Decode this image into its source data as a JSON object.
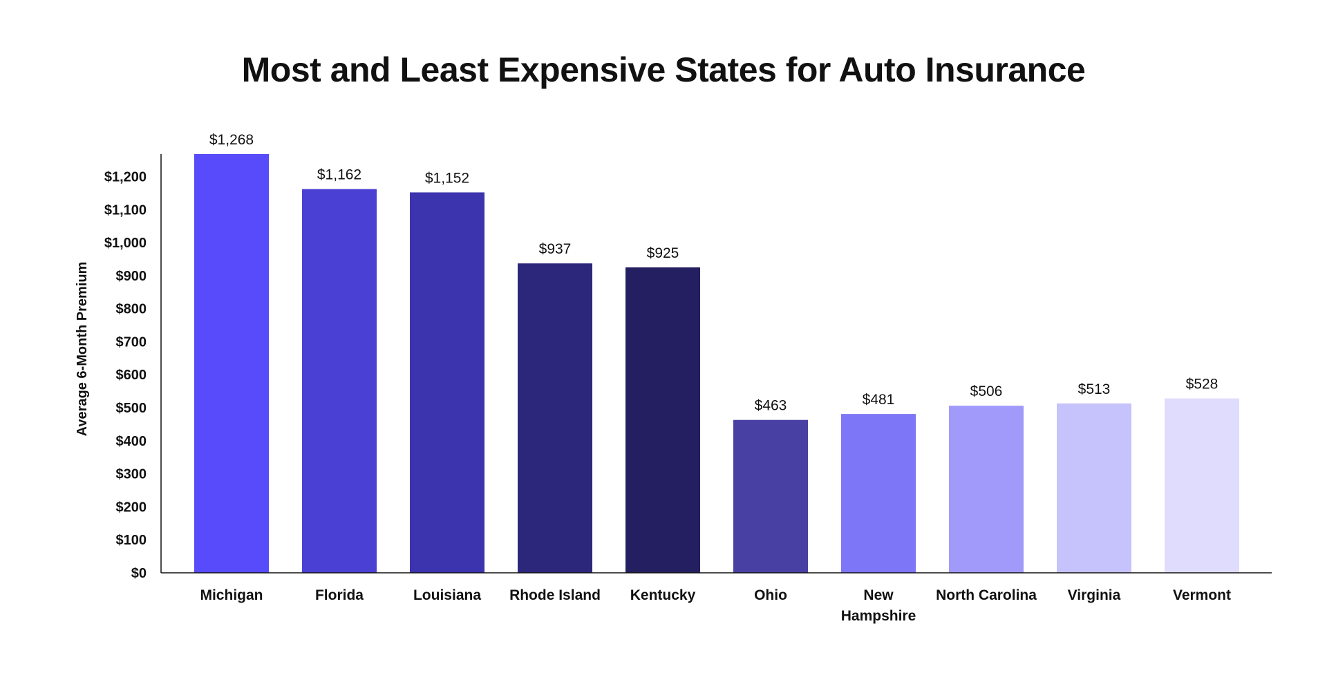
{
  "chart_data": {
    "type": "bar",
    "title": "Most and Least Expensive States for Auto Insurance",
    "xlabel": "",
    "ylabel": "Average 6-Month Premium",
    "categories": [
      "Michigan",
      "Florida",
      "Louisiana",
      "Rhode Island",
      "Kentucky",
      "Ohio",
      "New Hampshire",
      "North Carolina",
      "Virginia",
      "Vermont"
    ],
    "category_lines": [
      [
        "Michigan"
      ],
      [
        "Florida"
      ],
      [
        "Louisiana"
      ],
      [
        "Rhode Island"
      ],
      [
        "Kentucky"
      ],
      [
        "Ohio"
      ],
      [
        "New",
        "Hampshire"
      ],
      [
        "North Carolina"
      ],
      [
        "Virginia"
      ],
      [
        "Vermont"
      ]
    ],
    "values": [
      1268,
      1162,
      1152,
      937,
      925,
      463,
      481,
      506,
      513,
      528
    ],
    "value_labels": [
      "$1,268",
      "$1,162",
      "$1,152",
      "$937",
      "$925",
      "$463",
      "$481",
      "$506",
      "$513",
      "$528"
    ],
    "colors": [
      "#574bfb",
      "#4a41d4",
      "#3c33ae",
      "#2d277c",
      "#241f60",
      "#4940a4",
      "#7d76f7",
      "#a19afb",
      "#c6c2fb",
      "#dfdcfd"
    ],
    "ylim": [
      0,
      1268
    ],
    "yticks": [
      0,
      100,
      200,
      300,
      400,
      500,
      600,
      700,
      800,
      900,
      1000,
      1100,
      1200
    ],
    "ytick_labels": [
      "$0",
      "$100",
      "$200",
      "$300",
      "$400",
      "$500",
      "$600",
      "$700",
      "$800",
      "$900",
      "$1,000",
      "$1,100",
      "$1,200"
    ],
    "grid": false,
    "legend": "none"
  }
}
